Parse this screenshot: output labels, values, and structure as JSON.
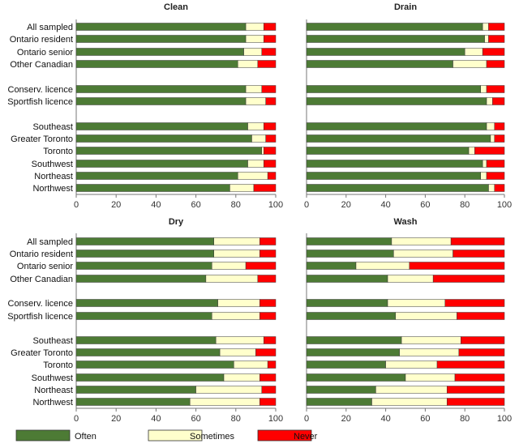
{
  "chart_data": [
    {
      "type": "bar",
      "stacked": true,
      "orientation": "horizontal",
      "title": "Clean",
      "categories": [
        "All sampled",
        "Ontario resident",
        "Ontario senior",
        "Other Canadian",
        "Conserv. licence",
        "Sportfish licence",
        "Southeast",
        "Greater Toronto",
        "Toronto",
        "Southwest",
        "Northeast",
        "Northwest"
      ],
      "series": [
        {
          "name": "Often",
          "values": [
            85,
            85,
            84,
            81,
            85,
            85,
            86,
            88,
            93,
            86,
            81,
            77
          ]
        },
        {
          "name": "Sometimes",
          "values": [
            9,
            9,
            9,
            10,
            8,
            10,
            8,
            7,
            1,
            8,
            15,
            12
          ]
        },
        {
          "name": "Never",
          "values": [
            6,
            6,
            7,
            9,
            7,
            5,
            6,
            5,
            6,
            6,
            4,
            11
          ]
        }
      ],
      "xlim": [
        0,
        100
      ],
      "xticks": [
        0,
        20,
        40,
        60,
        80,
        100
      ]
    },
    {
      "type": "bar",
      "stacked": true,
      "orientation": "horizontal",
      "title": "Drain",
      "categories": [
        "All sampled",
        "Ontario resident",
        "Ontario senior",
        "Other Canadian",
        "Conserv. licence",
        "Sportfish licence",
        "Southeast",
        "Greater Toronto",
        "Toronto",
        "Southwest",
        "Northeast",
        "Northwest"
      ],
      "series": [
        {
          "name": "Often",
          "values": [
            89,
            90,
            80,
            74,
            88,
            91,
            91,
            93,
            82,
            89,
            88,
            92
          ]
        },
        {
          "name": "Sometimes",
          "values": [
            3,
            2,
            9,
            17,
            3,
            3,
            4,
            2,
            3,
            2,
            3,
            3
          ]
        },
        {
          "name": "Never",
          "values": [
            8,
            8,
            11,
            9,
            9,
            6,
            5,
            5,
            15,
            9,
            9,
            5
          ]
        }
      ],
      "xlim": [
        0,
        100
      ],
      "xticks": [
        0,
        20,
        40,
        60,
        80,
        100
      ]
    },
    {
      "type": "bar",
      "stacked": true,
      "orientation": "horizontal",
      "title": "Dry",
      "categories": [
        "All sampled",
        "Ontario resident",
        "Ontario senior",
        "Other Canadian",
        "Conserv. licence",
        "Sportfish licence",
        "Southeast",
        "Greater Toronto",
        "Toronto",
        "Southwest",
        "Northeast",
        "Northwest"
      ],
      "series": [
        {
          "name": "Often",
          "values": [
            69,
            69,
            68,
            65,
            71,
            68,
            70,
            72,
            79,
            74,
            60,
            57
          ]
        },
        {
          "name": "Sometimes",
          "values": [
            23,
            23,
            17,
            26,
            21,
            24,
            24,
            18,
            17,
            18,
            33,
            35
          ]
        },
        {
          "name": "Never",
          "values": [
            8,
            8,
            15,
            9,
            8,
            8,
            6,
            10,
            4,
            8,
            7,
            8
          ]
        }
      ],
      "xlim": [
        0,
        100
      ],
      "xticks": [
        0,
        20,
        40,
        60,
        80,
        100
      ]
    },
    {
      "type": "bar",
      "stacked": true,
      "orientation": "horizontal",
      "title": "Wash",
      "categories": [
        "All sampled",
        "Ontario resident",
        "Ontario senior",
        "Other Canadian",
        "Conserv. licence",
        "Sportfish licence",
        "Southeast",
        "Greater Toronto",
        "Toronto",
        "Southwest",
        "Northeast",
        "Northwest"
      ],
      "series": [
        {
          "name": "Often",
          "values": [
            43,
            44,
            25,
            41,
            41,
            45,
            48,
            47,
            40,
            50,
            35,
            33
          ]
        },
        {
          "name": "Sometimes",
          "values": [
            30,
            30,
            27,
            23,
            29,
            31,
            30,
            30,
            26,
            25,
            36,
            38
          ]
        },
        {
          "name": "Never",
          "values": [
            27,
            26,
            48,
            36,
            30,
            24,
            22,
            23,
            34,
            25,
            29,
            29
          ]
        }
      ],
      "xlim": [
        0,
        100
      ],
      "xticks": [
        0,
        20,
        40,
        60,
        80,
        100
      ]
    }
  ],
  "legend": {
    "position": "bottom",
    "items": [
      {
        "label": "Often",
        "color": "#4d7b35"
      },
      {
        "label": "Sometimes",
        "color": "#ffffcc"
      },
      {
        "label": "Never",
        "color": "#ff0000"
      }
    ]
  }
}
